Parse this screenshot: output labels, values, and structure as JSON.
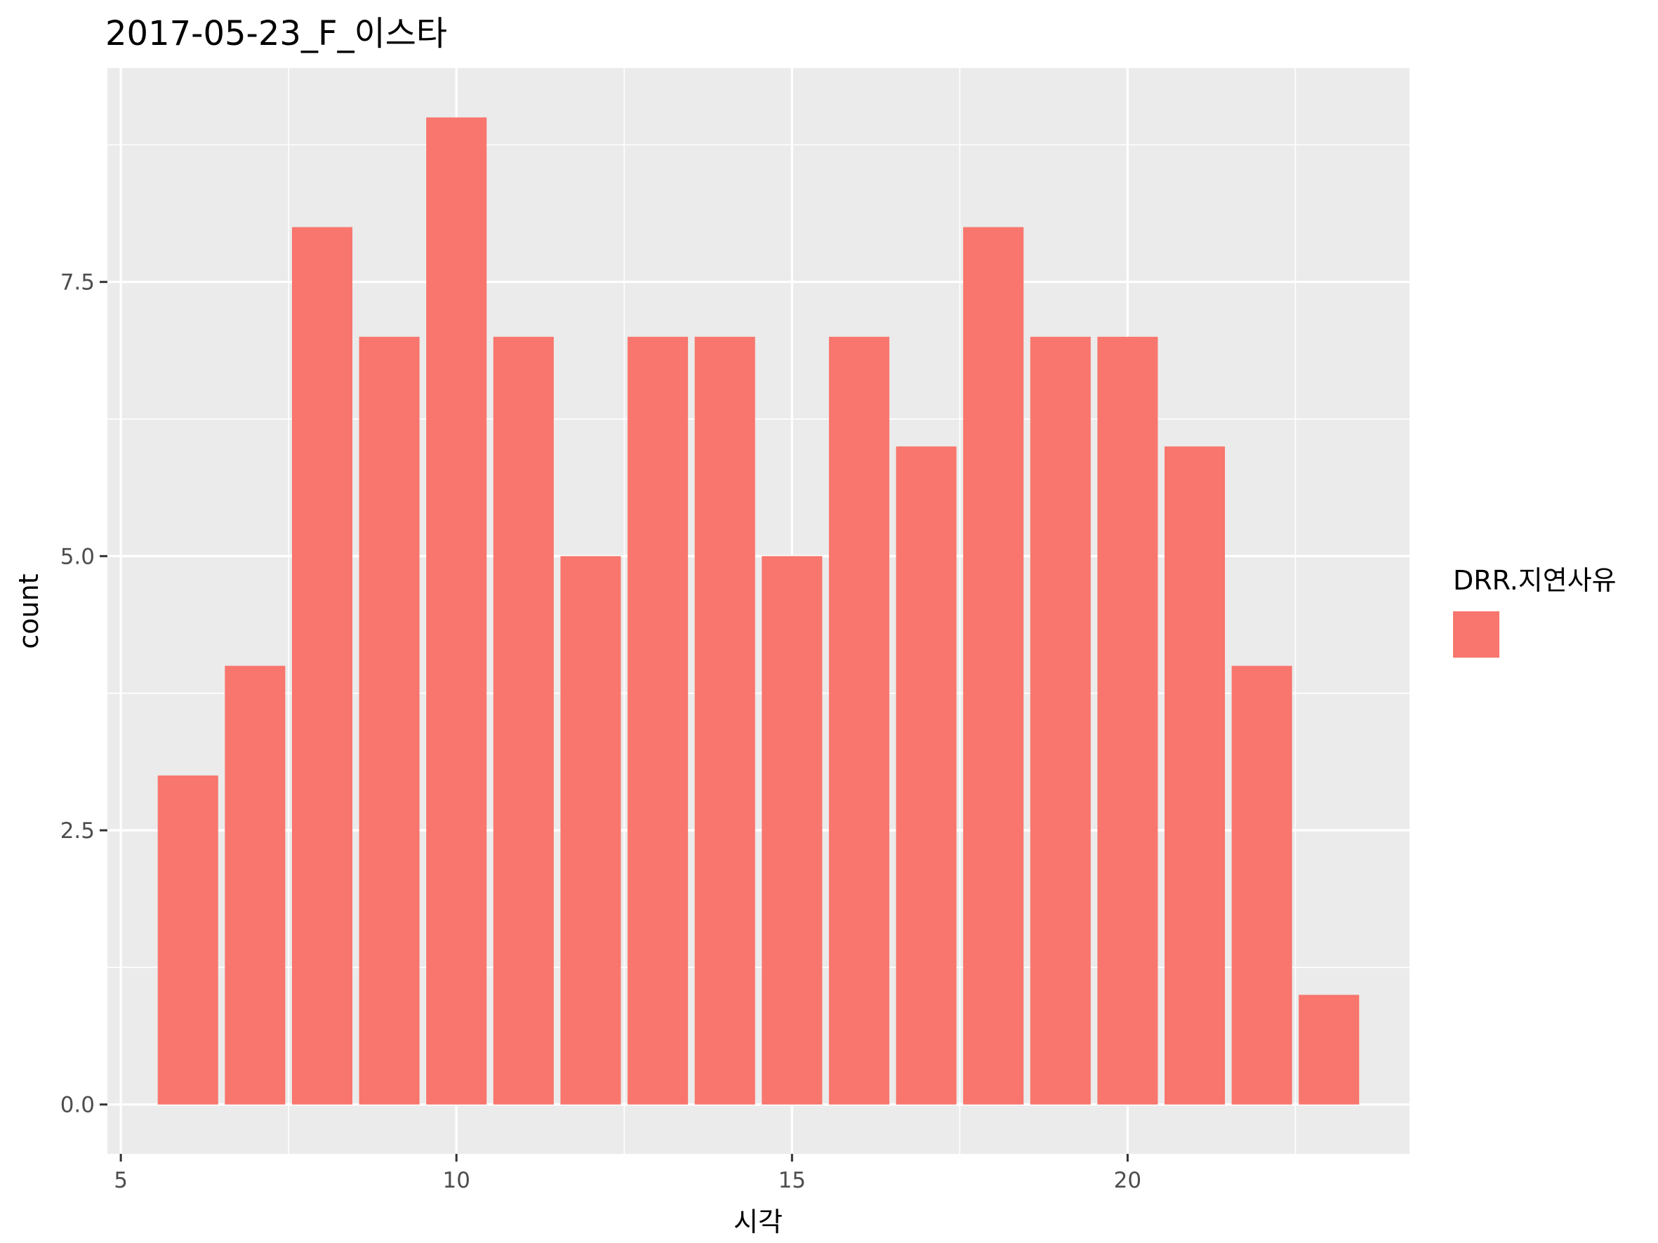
{
  "chart_data": {
    "type": "bar",
    "title": "2017-05-23_F_이스타",
    "xlabel": "시각",
    "ylabel": "count",
    "x": [
      6,
      7,
      8,
      9,
      10,
      11,
      12,
      13,
      14,
      15,
      16,
      17,
      18,
      19,
      20,
      21,
      22,
      23
    ],
    "values": [
      3,
      4,
      8,
      7,
      9,
      7,
      5,
      7,
      7,
      5,
      7,
      6,
      8,
      7,
      7,
      6,
      4,
      1
    ],
    "xlim": [
      4.8,
      24.2
    ],
    "ylim": [
      -0.45,
      9.45
    ],
    "xticks": [
      5,
      10,
      15,
      20
    ],
    "xtick_labels": [
      "5",
      "10",
      "15",
      "20"
    ],
    "yticks": [
      0,
      2.5,
      5,
      7.5
    ],
    "ytick_labels": [
      "0.0",
      "2.5",
      "5.0",
      "7.5"
    ],
    "grid": true,
    "legend": {
      "title": "DRR.지연사유",
      "placement": "right",
      "entries": [
        {
          "label": "",
          "color": "#F8766D"
        }
      ]
    },
    "colors": {
      "bar": "#F8766D",
      "panel": "#EBEBEB",
      "grid": "#FFFFFF"
    }
  }
}
